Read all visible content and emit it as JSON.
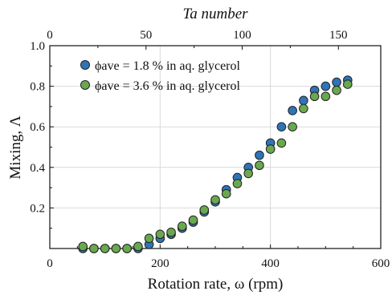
{
  "chart_data": {
    "type": "scatter",
    "xlabel": "Rotation rate, ω (rpm)",
    "ylabel": "Mixing, Λ",
    "top_axis_label": "Ta number",
    "xlim": [
      0,
      600
    ],
    "ylim": [
      0,
      1.0
    ],
    "top_xlim": [
      0,
      172
    ],
    "x_ticks": [
      0,
      200,
      400,
      600
    ],
    "y_ticks": [
      0.2,
      0.4,
      0.6,
      0.8,
      1.0
    ],
    "top_ticks": [
      0,
      50,
      100,
      150
    ],
    "grid": true,
    "legend_position": "top-left",
    "series": [
      {
        "name": "ϕave = 1.8 % in aq. glycerol",
        "color": "#2f74b8",
        "points": [
          [
            60,
            0.0
          ],
          [
            80,
            0.0
          ],
          [
            100,
            0.0
          ],
          [
            120,
            0.0
          ],
          [
            140,
            0.0
          ],
          [
            160,
            0.0
          ],
          [
            180,
            0.02
          ],
          [
            200,
            0.05
          ],
          [
            220,
            0.07
          ],
          [
            240,
            0.1
          ],
          [
            260,
            0.13
          ],
          [
            280,
            0.18
          ],
          [
            300,
            0.23
          ],
          [
            320,
            0.29
          ],
          [
            340,
            0.35
          ],
          [
            360,
            0.4
          ],
          [
            380,
            0.46
          ],
          [
            400,
            0.52
          ],
          [
            420,
            0.6
          ],
          [
            440,
            0.68
          ],
          [
            460,
            0.73
          ],
          [
            480,
            0.78
          ],
          [
            500,
            0.8
          ],
          [
            520,
            0.82
          ],
          [
            540,
            0.83
          ]
        ]
      },
      {
        "name": "ϕave = 3.6 % in aq. glycerol",
        "color": "#6aa84f",
        "points": [
          [
            60,
            0.01
          ],
          [
            80,
            0.0
          ],
          [
            100,
            0.0
          ],
          [
            120,
            0.0
          ],
          [
            140,
            0.0
          ],
          [
            160,
            0.01
          ],
          [
            180,
            0.05
          ],
          [
            200,
            0.07
          ],
          [
            220,
            0.08
          ],
          [
            240,
            0.11
          ],
          [
            260,
            0.14
          ],
          [
            280,
            0.19
          ],
          [
            300,
            0.24
          ],
          [
            320,
            0.27
          ],
          [
            340,
            0.32
          ],
          [
            360,
            0.37
          ],
          [
            380,
            0.41
          ],
          [
            400,
            0.49
          ],
          [
            420,
            0.52
          ],
          [
            440,
            0.6
          ],
          [
            460,
            0.69
          ],
          [
            480,
            0.75
          ],
          [
            500,
            0.75
          ],
          [
            520,
            0.78
          ],
          [
            540,
            0.81
          ]
        ]
      }
    ]
  }
}
